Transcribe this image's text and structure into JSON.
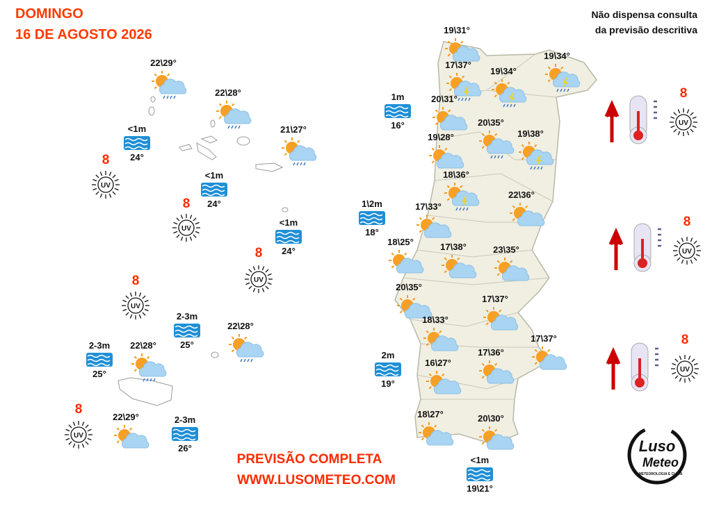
{
  "header": {
    "day": "DOMINGO",
    "date": "16 DE AGOSTO 2026",
    "note": [
      "Não dispensa consulta",
      "da previsão descritiva"
    ]
  },
  "uv_icon_label": "UV",
  "azores": {
    "forecasts": [
      "22\\29°",
      "22\\28°",
      "21\\27°"
    ],
    "sea": [
      {
        "wave": "<1m",
        "temp": "24°"
      },
      {
        "wave": "<1m",
        "temp": "24°"
      },
      {
        "wave": "<1m",
        "temp": "24°"
      }
    ],
    "uv": [
      8,
      8,
      8
    ]
  },
  "madeira": {
    "forecasts": [
      "22\\28°",
      "22\\28°",
      "22\\29°"
    ],
    "sea": [
      {
        "wave": "2-3m",
        "temp": "25°"
      },
      {
        "wave": "2-3m",
        "temp": "25°"
      },
      {
        "wave": "2-3m",
        "temp": "26°"
      }
    ],
    "uv": [
      8,
      8
    ]
  },
  "mainland": {
    "forecasts": [
      "19\\31°",
      "17\\37°",
      "19\\34°",
      "19\\34°",
      "20\\31°",
      "20\\35°",
      "19\\38°",
      "19\\28°",
      "18\\36°",
      "22\\36°",
      "17\\33°",
      "18\\25°",
      "17\\38°",
      "23\\35°",
      "20\\35°",
      "17\\37°",
      "18\\33°",
      "17\\37°",
      "17\\36°",
      "16\\27°",
      "18\\27°",
      "20\\30°"
    ],
    "sea": [
      {
        "wave": "1m",
        "temp": "16°"
      },
      {
        "wave": "1\\2m",
        "temp": "18°"
      },
      {
        "wave": "2m",
        "temp": "19°"
      },
      {
        "wave": "<1m",
        "temp": "19\\21°"
      }
    ]
  },
  "legend": {
    "uv": [
      8,
      8,
      8
    ]
  },
  "footer": {
    "line1": "PREVISÃO COMPLETA",
    "line2": "WWW.LUSOMETEO.COM"
  },
  "logo": {
    "name1": "Luso",
    "name2": "Meteo",
    "tagline": "METEOROLOGIA E CLIMA"
  }
}
